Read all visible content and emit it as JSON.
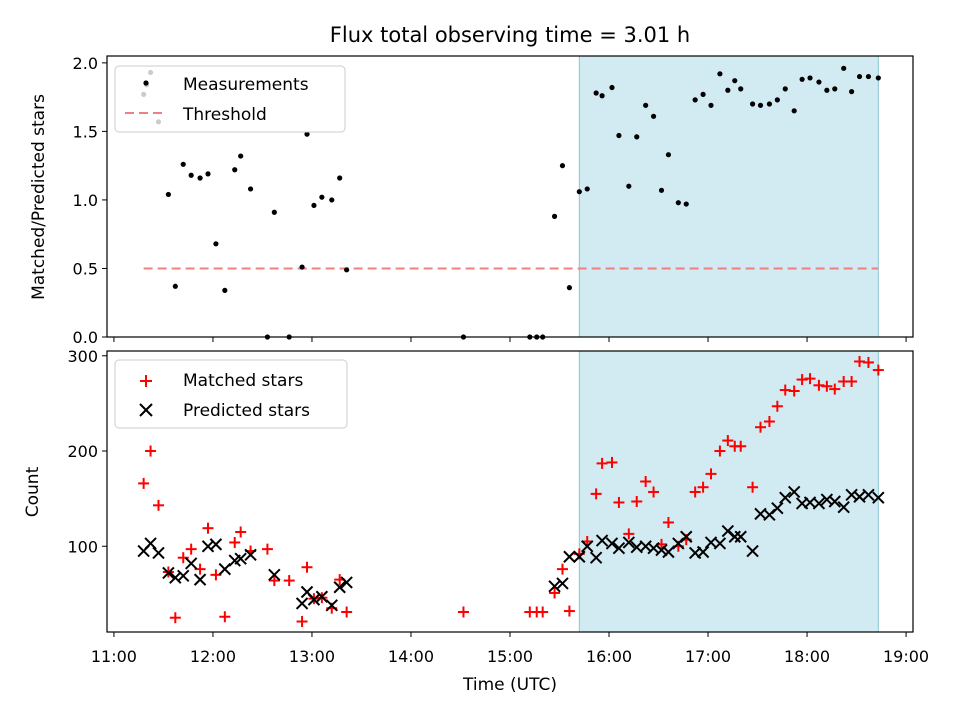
{
  "chart_data": [
    {
      "type": "scatter",
      "title": "Flux total observing time = 3.01 h",
      "xlabel": "",
      "ylabel": "Matched/Predicted stars",
      "xlim": [
        10.93,
        19.07
      ],
      "ylim": [
        0,
        2.05
      ],
      "yticks": [
        0.0,
        0.5,
        1.0,
        1.5,
        2.0
      ],
      "ytick_labels": [
        "0.0",
        "0.5",
        "1.0",
        "1.5",
        "2.0"
      ],
      "xticks": [
        11,
        12,
        13,
        14,
        15,
        16,
        17,
        18,
        19
      ],
      "highlight_span": {
        "start": 15.7,
        "end": 18.72,
        "color": "#add8e6"
      },
      "threshold": {
        "name": "Threshold",
        "y": 0.5,
        "x_start": 11.3,
        "x_end": 18.72,
        "color": "#f08080"
      },
      "legend": [
        {
          "label": "Measurements",
          "marker": "dot"
        },
        {
          "label": "Threshold",
          "marker": "dash"
        }
      ],
      "series": [
        {
          "name": "Measurements",
          "color": "#000000",
          "points": [
            [
              11.3,
              1.77
            ],
            [
              11.33,
              1.84
            ],
            [
              11.37,
              1.93
            ],
            [
              11.45,
              1.57
            ],
            [
              11.55,
              1.04
            ],
            [
              11.62,
              0.37
            ],
            [
              11.7,
              1.26
            ],
            [
              11.78,
              1.18
            ],
            [
              11.87,
              1.16
            ],
            [
              11.95,
              1.19
            ],
            [
              12.03,
              0.68
            ],
            [
              12.12,
              0.34
            ],
            [
              12.22,
              1.22
            ],
            [
              12.28,
              1.32
            ],
            [
              12.38,
              1.08
            ],
            [
              12.55,
              0.0
            ],
            [
              12.62,
              0.91
            ],
            [
              12.77,
              0.0
            ],
            [
              12.9,
              0.51
            ],
            [
              12.95,
              1.48
            ],
            [
              13.02,
              0.96
            ],
            [
              13.1,
              1.02
            ],
            [
              13.2,
              1.0
            ],
            [
              13.28,
              1.16
            ],
            [
              13.35,
              0.49
            ],
            [
              14.53,
              0.0
            ],
            [
              15.2,
              0.0
            ],
            [
              15.27,
              0.0
            ],
            [
              15.33,
              0.0
            ],
            [
              15.45,
              0.88
            ],
            [
              15.53,
              1.25
            ],
            [
              15.6,
              0.36
            ],
            [
              15.7,
              1.06
            ],
            [
              15.78,
              1.08
            ],
            [
              15.87,
              1.78
            ],
            [
              15.93,
              1.76
            ],
            [
              16.03,
              1.82
            ],
            [
              16.1,
              1.47
            ],
            [
              16.2,
              1.1
            ],
            [
              16.28,
              1.46
            ],
            [
              16.37,
              1.69
            ],
            [
              16.45,
              1.61
            ],
            [
              16.53,
              1.07
            ],
            [
              16.6,
              1.33
            ],
            [
              16.7,
              0.98
            ],
            [
              16.78,
              0.97
            ],
            [
              16.87,
              1.73
            ],
            [
              16.95,
              1.77
            ],
            [
              17.03,
              1.69
            ],
            [
              17.12,
              1.92
            ],
            [
              17.2,
              1.8
            ],
            [
              17.27,
              1.87
            ],
            [
              17.33,
              1.81
            ],
            [
              17.45,
              1.7
            ],
            [
              17.53,
              1.69
            ],
            [
              17.62,
              1.7
            ],
            [
              17.7,
              1.73
            ],
            [
              17.78,
              1.81
            ],
            [
              17.87,
              1.65
            ],
            [
              17.95,
              1.88
            ],
            [
              18.03,
              1.89
            ],
            [
              18.12,
              1.86
            ],
            [
              18.2,
              1.8
            ],
            [
              18.28,
              1.81
            ],
            [
              18.37,
              1.96
            ],
            [
              18.45,
              1.79
            ],
            [
              18.53,
              1.9
            ],
            [
              18.62,
              1.9
            ],
            [
              18.72,
              1.89
            ]
          ]
        }
      ]
    },
    {
      "type": "scatter",
      "title": "",
      "xlabel": "Time (UTC)",
      "ylabel": "Count",
      "xlim": [
        10.93,
        19.07
      ],
      "ylim": [
        10,
        305
      ],
      "yticks": [
        100,
        200,
        300
      ],
      "ytick_labels": [
        "100",
        "200",
        "300"
      ],
      "xticks": [
        11,
        12,
        13,
        14,
        15,
        16,
        17,
        18,
        19
      ],
      "xtick_labels": [
        "11:00",
        "12:00",
        "13:00",
        "14:00",
        "15:00",
        "16:00",
        "17:00",
        "18:00",
        "19:00"
      ],
      "highlight_span": {
        "start": 15.7,
        "end": 18.72,
        "color": "#add8e6"
      },
      "legend": [
        {
          "label": "Matched stars",
          "marker": "plus"
        },
        {
          "label": "Predicted stars",
          "marker": "x"
        }
      ],
      "series": [
        {
          "name": "Matched stars",
          "marker": "plus",
          "color": "#ff0000",
          "points": [
            [
              11.3,
              166
            ],
            [
              11.37,
              200
            ],
            [
              11.45,
              143
            ],
            [
              11.55,
              73
            ],
            [
              11.62,
              25
            ],
            [
              11.7,
              88
            ],
            [
              11.78,
              97
            ],
            [
              11.87,
              76
            ],
            [
              11.95,
              119
            ],
            [
              12.03,
              70
            ],
            [
              12.12,
              26
            ],
            [
              12.22,
              104
            ],
            [
              12.28,
              115
            ],
            [
              12.38,
              95
            ],
            [
              12.55,
              97
            ],
            [
              12.62,
              64
            ],
            [
              12.77,
              64
            ],
            [
              12.9,
              21
            ],
            [
              12.95,
              78
            ],
            [
              13.02,
              45
            ],
            [
              13.1,
              46
            ],
            [
              13.2,
              35
            ],
            [
              13.28,
              65
            ],
            [
              13.35,
              31
            ],
            [
              14.53,
              31
            ],
            [
              15.2,
              31
            ],
            [
              15.27,
              31
            ],
            [
              15.33,
              31
            ],
            [
              15.45,
              51
            ],
            [
              15.53,
              76
            ],
            [
              15.6,
              32
            ],
            [
              15.7,
              92
            ],
            [
              15.78,
              105
            ],
            [
              15.87,
              155
            ],
            [
              15.93,
              187
            ],
            [
              16.03,
              188
            ],
            [
              16.1,
              146
            ],
            [
              16.2,
              113
            ],
            [
              16.28,
              147
            ],
            [
              16.37,
              168
            ],
            [
              16.45,
              157
            ],
            [
              16.53,
              102
            ],
            [
              16.6,
              125
            ],
            [
              16.7,
              100
            ],
            [
              16.78,
              107
            ],
            [
              16.87,
              157
            ],
            [
              16.95,
              162
            ],
            [
              17.03,
              176
            ],
            [
              17.12,
              200
            ],
            [
              17.2,
              211
            ],
            [
              17.27,
              205
            ],
            [
              17.33,
              205
            ],
            [
              17.45,
              162
            ],
            [
              17.53,
              225
            ],
            [
              17.62,
              231
            ],
            [
              17.7,
              247
            ],
            [
              17.78,
              264
            ],
            [
              17.87,
              263
            ],
            [
              17.95,
              275
            ],
            [
              18.03,
              276
            ],
            [
              18.12,
              269
            ],
            [
              18.2,
              268
            ],
            [
              18.28,
              265
            ],
            [
              18.37,
              273
            ],
            [
              18.45,
              273
            ],
            [
              18.53,
              294
            ],
            [
              18.62,
              293
            ],
            [
              18.72,
              285
            ]
          ]
        },
        {
          "name": "Predicted stars",
          "marker": "x",
          "color": "#000000",
          "points": [
            [
              11.3,
              95
            ],
            [
              11.37,
              103
            ],
            [
              11.45,
              93
            ],
            [
              11.55,
              72
            ],
            [
              11.62,
              67
            ],
            [
              11.7,
              69
            ],
            [
              11.78,
              82
            ],
            [
              11.87,
              65
            ],
            [
              11.95,
              100
            ],
            [
              12.03,
              102
            ],
            [
              12.12,
              76
            ],
            [
              12.22,
              85
            ],
            [
              12.28,
              87
            ],
            [
              12.38,
              91
            ],
            [
              12.62,
              70
            ],
            [
              12.9,
              40
            ],
            [
              12.95,
              52
            ],
            [
              13.02,
              44
            ],
            [
              13.1,
              47
            ],
            [
              13.2,
              38
            ],
            [
              13.28,
              57
            ],
            [
              13.35,
              62
            ],
            [
              15.45,
              58
            ],
            [
              15.53,
              61
            ],
            [
              15.6,
              89
            ],
            [
              15.7,
              89
            ],
            [
              15.78,
              100
            ],
            [
              15.87,
              88
            ],
            [
              15.93,
              106
            ],
            [
              16.03,
              103
            ],
            [
              16.1,
              98
            ],
            [
              16.2,
              104
            ],
            [
              16.28,
              99
            ],
            [
              16.37,
              100
            ],
            [
              16.45,
              98
            ],
            [
              16.53,
              96
            ],
            [
              16.6,
              94
            ],
            [
              16.7,
              103
            ],
            [
              16.78,
              110
            ],
            [
              16.87,
              93
            ],
            [
              16.95,
              94
            ],
            [
              17.03,
              104
            ],
            [
              17.12,
              103
            ],
            [
              17.2,
              116
            ],
            [
              17.27,
              110
            ],
            [
              17.33,
              110
            ],
            [
              17.45,
              95
            ],
            [
              17.53,
              134
            ],
            [
              17.62,
              133
            ],
            [
              17.7,
              140
            ],
            [
              17.78,
              151
            ],
            [
              17.87,
              157
            ],
            [
              17.95,
              145
            ],
            [
              18.03,
              146
            ],
            [
              18.12,
              145
            ],
            [
              18.2,
              149
            ],
            [
              18.28,
              147
            ],
            [
              18.37,
              141
            ],
            [
              18.45,
              154
            ],
            [
              18.53,
              152
            ],
            [
              18.62,
              154
            ],
            [
              18.72,
              151
            ]
          ]
        }
      ]
    }
  ]
}
